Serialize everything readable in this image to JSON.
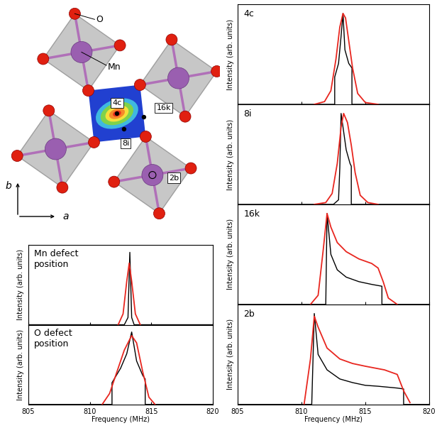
{
  "chart_data": [
    {
      "type": "line",
      "title": "4c",
      "y_label": "Intensity (arb. units)",
      "xlim": [
        805,
        820
      ],
      "xticks": [
        805,
        810,
        815,
        820
      ],
      "ylim": [
        0,
        1.1
      ],
      "tick_labels": false,
      "series": [
        {
          "color": "#000000",
          "x": [
            805,
            812.6,
            812.6,
            812.9,
            813.1,
            813.25,
            813.4,
            813.7,
            813.95,
            813.95,
            820
          ],
          "values": [
            0,
            0,
            0.3,
            0.45,
            0.75,
            1.0,
            0.6,
            0.45,
            0.4,
            0,
            0
          ]
        },
        {
          "color": "#e8261f",
          "x": [
            811,
            811.8,
            812.3,
            812.7,
            813.0,
            813.25,
            813.45,
            813.7,
            814.0,
            814.4,
            815,
            816
          ],
          "values": [
            0,
            0.03,
            0.15,
            0.5,
            0.85,
            1.0,
            0.95,
            0.7,
            0.4,
            0.12,
            0.02,
            0
          ]
        }
      ]
    },
    {
      "type": "line",
      "title": "8i",
      "y_label": "Intensity (arb. units)",
      "xlim": [
        805,
        820
      ],
      "xticks": [
        805,
        810,
        815,
        820
      ],
      "ylim": [
        0,
        1.1
      ],
      "tick_labels": false,
      "series": [
        {
          "color": "#000000",
          "x": [
            805,
            812.5,
            812.9,
            813.0,
            813.1,
            813.5,
            813.8,
            813.9,
            813.9,
            820
          ],
          "values": [
            0,
            0,
            0.05,
            0.4,
            1.0,
            0.6,
            0.45,
            0.42,
            0,
            0
          ]
        },
        {
          "color": "#e8261f",
          "x": [
            811,
            811.9,
            812.4,
            812.8,
            813.1,
            813.3,
            813.6,
            813.9,
            814.2,
            814.6,
            815.2,
            816
          ],
          "values": [
            0,
            0.02,
            0.12,
            0.45,
            0.85,
            1.0,
            0.9,
            0.65,
            0.35,
            0.1,
            0.02,
            0
          ]
        }
      ]
    },
    {
      "type": "line",
      "title": "16k",
      "y_label": "Intensity (arb. units)",
      "xlim": [
        805,
        820
      ],
      "xticks": [
        805,
        810,
        815,
        820
      ],
      "ylim": [
        0,
        1.1
      ],
      "tick_labels": false,
      "series": [
        {
          "color": "#000000",
          "x": [
            805,
            811.9,
            812.0,
            812.3,
            812.8,
            813.5,
            814.5,
            815.5,
            816.3,
            816.3,
            820
          ],
          "values": [
            0,
            0,
            1.0,
            0.55,
            0.38,
            0.3,
            0.25,
            0.22,
            0.2,
            0,
            0
          ]
        },
        {
          "color": "#e8261f",
          "x": [
            810.7,
            811.3,
            811.7,
            812.0,
            812.3,
            812.8,
            813.5,
            814.5,
            815.5,
            816.0,
            816.4,
            816.8,
            817.5
          ],
          "values": [
            0,
            0.1,
            0.6,
            1.0,
            0.85,
            0.68,
            0.58,
            0.5,
            0.45,
            0.4,
            0.25,
            0.07,
            0
          ]
        }
      ]
    },
    {
      "type": "line",
      "title": "2b",
      "y_label": "Intensity (arb. units)",
      "x_label": "Frequency (MHz)",
      "xlim": [
        805,
        820
      ],
      "xticks": [
        805,
        810,
        815,
        820
      ],
      "ylim": [
        0,
        1.1
      ],
      "tick_labels": "x",
      "series": [
        {
          "color": "#000000",
          "x": [
            805,
            810.8,
            811.0,
            811.3,
            812,
            813,
            814,
            815,
            816,
            817.5,
            818,
            818,
            820
          ],
          "values": [
            0,
            0,
            1.0,
            0.55,
            0.38,
            0.28,
            0.24,
            0.21,
            0.2,
            0.18,
            0.17,
            0,
            0
          ]
        },
        {
          "color": "#e8261f",
          "x": [
            810.2,
            810.7,
            811.0,
            811.3,
            812,
            813,
            814,
            815,
            816.5,
            817.5,
            818,
            818.5
          ],
          "values": [
            0,
            0.5,
            0.97,
            0.85,
            0.62,
            0.5,
            0.45,
            0.42,
            0.38,
            0.33,
            0.15,
            0.02
          ]
        }
      ]
    },
    {
      "type": "line",
      "title": "Mn defect\nposition",
      "y_label": "Intensity (arb. units)",
      "xlim": [
        805,
        820
      ],
      "xticks": [
        805,
        810,
        815,
        820
      ],
      "ylim": [
        0,
        1.1
      ],
      "tick_labels": false,
      "series": [
        {
          "color": "#000000",
          "x": [
            805,
            812.8,
            813.1,
            813.25,
            813.4,
            813.6,
            820
          ],
          "values": [
            0,
            0,
            0.1,
            1.0,
            0.1,
            0,
            0
          ]
        },
        {
          "color": "#e8261f",
          "x": [
            812.3,
            812.7,
            813.0,
            813.2,
            813.4,
            813.7,
            814.1
          ],
          "values": [
            0,
            0.15,
            0.6,
            0.85,
            0.6,
            0.15,
            0
          ]
        }
      ]
    },
    {
      "type": "line",
      "title": "O defect\nposition",
      "y_label": "Intensity (arb. units)",
      "x_label": "Frequency (MHz)",
      "xlim": [
        805,
        820
      ],
      "xticks": [
        805,
        810,
        815,
        820
      ],
      "ylim": [
        0,
        1.1
      ],
      "tick_labels": "x",
      "series": [
        {
          "color": "#000000",
          "x": [
            805,
            811.8,
            811.8,
            812.5,
            813.0,
            813.4,
            813.8,
            814.3,
            814.5,
            814.5,
            820
          ],
          "values": [
            0,
            0,
            0.3,
            0.5,
            0.7,
            1.0,
            0.6,
            0.4,
            0.35,
            0,
            0
          ]
        },
        {
          "color": "#e8261f",
          "x": [
            811,
            811.6,
            812.2,
            812.8,
            813.4,
            813.8,
            814.3,
            814.8,
            815.3
          ],
          "values": [
            0,
            0.15,
            0.45,
            0.75,
            0.95,
            0.85,
            0.45,
            0.1,
            0
          ]
        }
      ]
    }
  ],
  "diagram": {
    "atoms": [
      "O",
      "Mn"
    ],
    "sites": [
      "4c",
      "8i",
      "16k",
      "2b"
    ],
    "axes": [
      "b",
      "a"
    ]
  }
}
